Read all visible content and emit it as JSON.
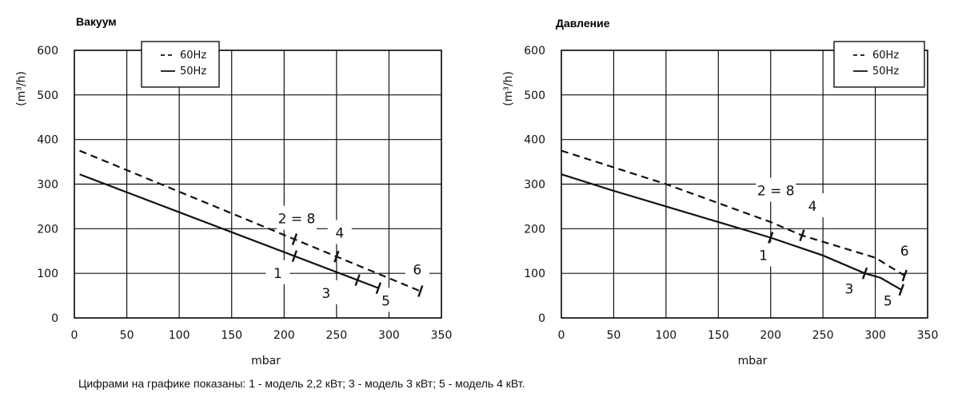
{
  "chart_data": [
    {
      "type": "line",
      "title": "Вакуум",
      "xlabel": "mbar",
      "ylabel": "(m³/h)",
      "xlim": [
        0,
        350
      ],
      "ylim": [
        0,
        600
      ],
      "xticks": [
        "0",
        "50",
        "100",
        "150",
        "200",
        "250",
        "300",
        "350"
      ],
      "yticks": [
        "0",
        "100",
        "200",
        "300",
        "400",
        "500",
        "600"
      ],
      "grid": true,
      "legend": {
        "position": "top-left",
        "entries": [
          {
            "label": "60Hz",
            "style": "dashed"
          },
          {
            "label": "50Hz",
            "style": "solid"
          }
        ]
      },
      "series": [
        {
          "name": "60Hz",
          "style": "dashed",
          "x": [
            5,
            330
          ],
          "y": [
            375,
            60
          ]
        },
        {
          "name": "50Hz",
          "style": "solid",
          "x": [
            5,
            290
          ],
          "y": [
            322,
            67
          ]
        }
      ],
      "markers": [
        {
          "series": "50Hz",
          "x": [
            210,
            270,
            290
          ]
        },
        {
          "series": "60Hz",
          "x": [
            210,
            250,
            330
          ]
        }
      ],
      "annotations": [
        {
          "text": "2 = 8",
          "x": 212,
          "y": 212
        },
        {
          "text": "4",
          "x": 253,
          "y": 180
        },
        {
          "text": "1",
          "x": 194,
          "y": 90
        },
        {
          "text": "3",
          "x": 240,
          "y": 45
        },
        {
          "text": "5",
          "x": 297,
          "y": 28
        },
        {
          "text": "6",
          "x": 327,
          "y": 98
        }
      ]
    },
    {
      "type": "line",
      "title": "Давление",
      "xlabel": "mbar",
      "ylabel": "(m³/h)",
      "xlim": [
        0,
        350
      ],
      "ylim": [
        0,
        600
      ],
      "xticks": [
        "0",
        "50",
        "100",
        "150",
        "200",
        "250",
        "300",
        "350"
      ],
      "yticks": [
        "0",
        "100",
        "200",
        "300",
        "400",
        "500",
        "600"
      ],
      "grid": true,
      "legend": {
        "position": "top-right",
        "entries": [
          {
            "label": "60Hz",
            "style": "dashed"
          },
          {
            "label": "50Hz",
            "style": "solid"
          }
        ]
      },
      "series": [
        {
          "name": "60Hz",
          "style": "dashed",
          "x": [
            0,
            100,
            200,
            230,
            300,
            328
          ],
          "y": [
            375,
            300,
            215,
            185,
            135,
            95
          ]
        },
        {
          "name": "50Hz",
          "style": "solid",
          "x": [
            0,
            50,
            100,
            150,
            200,
            250,
            290,
            305,
            325
          ],
          "y": [
            322,
            285,
            250,
            215,
            180,
            140,
            100,
            90,
            63
          ]
        }
      ],
      "markers": [
        {
          "series": "50Hz",
          "x": [
            200,
            290,
            325
          ]
        },
        {
          "series": "60Hz",
          "x": [
            230,
            328
          ]
        }
      ],
      "annotations": [
        {
          "text": "2 = 8",
          "x": 205,
          "y": 275
        },
        {
          "text": "4",
          "x": 240,
          "y": 240
        },
        {
          "text": "1",
          "x": 193,
          "y": 130
        },
        {
          "text": "3",
          "x": 275,
          "y": 55
        },
        {
          "text": "5",
          "x": 312,
          "y": 28
        },
        {
          "text": "6",
          "x": 328,
          "y": 140
        }
      ]
    }
  ],
  "footnote": "Цифрами на графике показаны:  1 - модель 2,2 кВт;       3 - модель 3 кВт;        5 - модель  4 кВт.",
  "colors": {
    "line": "#111111",
    "background": "#ffffff"
  }
}
